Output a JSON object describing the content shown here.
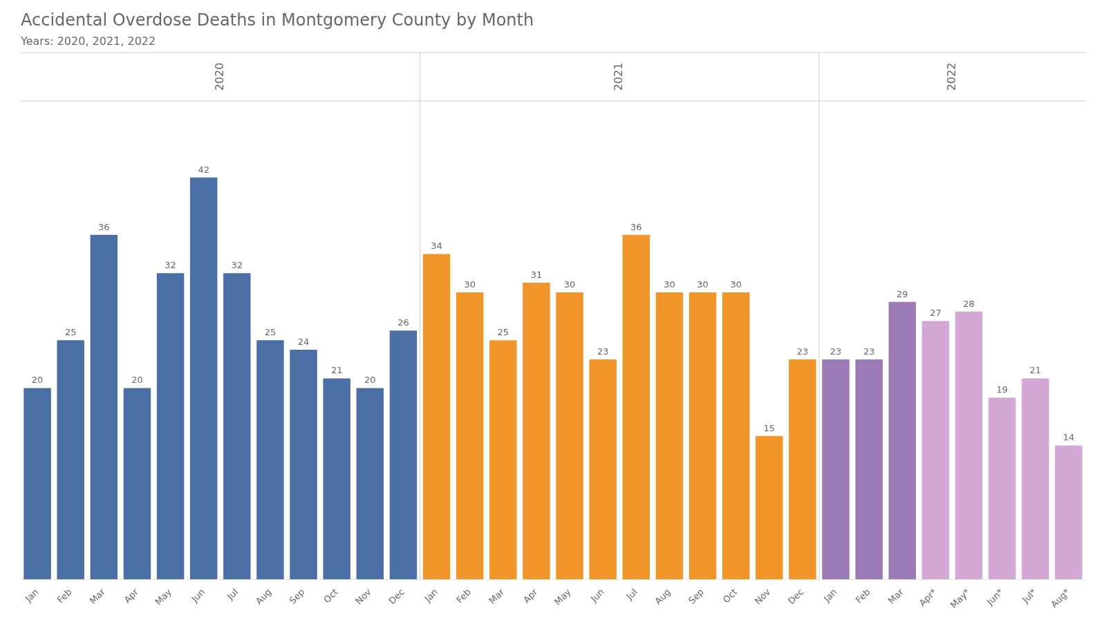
{
  "chart_data": {
    "type": "bar",
    "title": "Accidental Overdose Deaths in Montgomery County by Month",
    "subtitle": "Years: 2020, 2021, 2022",
    "categories": [
      "Jan",
      "Feb",
      "Mar",
      "Apr",
      "May",
      "Jun",
      "Jul",
      "Aug",
      "Sep",
      "Oct",
      "Nov",
      "Dec",
      "Jan",
      "Feb",
      "Mar",
      "Apr",
      "May",
      "Jun",
      "Jul",
      "Aug",
      "Sep",
      "Oct",
      "Nov",
      "Dec",
      "Jan",
      "Feb",
      "Mar",
      "Apr*",
      "May*",
      "Jun*",
      "Jul*",
      "Aug*"
    ],
    "series": [
      {
        "name": "2020",
        "color": "#4a6fa5",
        "values": [
          20,
          25,
          36,
          20,
          32,
          42,
          32,
          25,
          24,
          21,
          20,
          26,
          null,
          null,
          null,
          null,
          null,
          null,
          null,
          null,
          null,
          null,
          null,
          null,
          null,
          null,
          null,
          null,
          null,
          null,
          null,
          null
        ]
      },
      {
        "name": "2021",
        "color": "#f0952a",
        "values": [
          null,
          null,
          null,
          null,
          null,
          null,
          null,
          null,
          null,
          null,
          null,
          null,
          34,
          30,
          25,
          31,
          30,
          23,
          36,
          30,
          30,
          30,
          15,
          23,
          null,
          null,
          null,
          null,
          null,
          null,
          null,
          null
        ]
      },
      {
        "name": "2022",
        "colors": [
          null,
          null,
          null,
          null,
          null,
          null,
          null,
          null,
          null,
          null,
          null,
          null,
          null,
          null,
          null,
          null,
          null,
          null,
          null,
          null,
          null,
          null,
          null,
          null,
          "#9b7bb5",
          "#9b7bb5",
          "#9b7bb5",
          "#d4a8d4",
          "#d4a8d4",
          "#d4a8d4",
          "#d4a8d4",
          "#d4a8d4"
        ],
        "values": [
          null,
          null,
          null,
          null,
          null,
          null,
          null,
          null,
          null,
          null,
          null,
          null,
          null,
          null,
          null,
          null,
          null,
          null,
          null,
          null,
          null,
          null,
          null,
          null,
          23,
          23,
          29,
          27,
          28,
          19,
          21,
          14
        ]
      }
    ],
    "ylim": [
      0,
      50
    ],
    "grid": false,
    "data_labels": true,
    "tick_labels": "x"
  }
}
